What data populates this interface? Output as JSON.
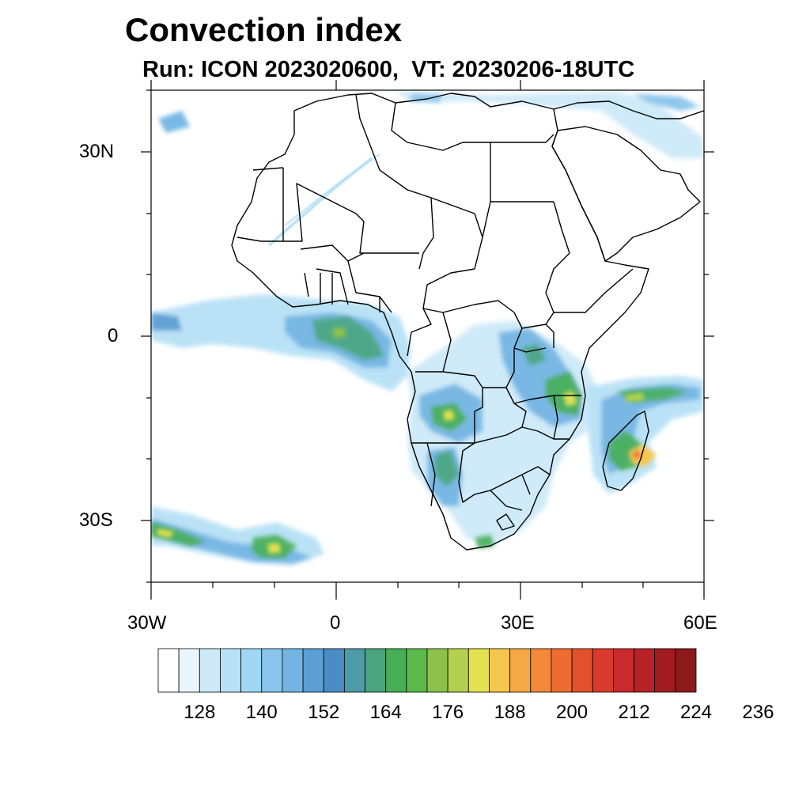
{
  "title": "Convection index",
  "subtitle": "Run: ICON 2023020600,  VT: 20230206-18UTC",
  "map": {
    "lon_range": [
      "30W",
      "60E"
    ],
    "lat_range": [
      "40S",
      "40N"
    ],
    "y_ticks": [
      "30N",
      "0",
      "30S"
    ],
    "x_ticks": [
      "30W",
      "0",
      "30E",
      "60E"
    ]
  },
  "colorbar": {
    "labels": [
      "128",
      "140",
      "152",
      "164",
      "176",
      "188",
      "200",
      "212",
      "224",
      "236"
    ],
    "colors": [
      "#ffffff",
      "#eaf6fd",
      "#cde9f8",
      "#b7e1f6",
      "#9fd8f4",
      "#8ac6ec",
      "#72b5e3",
      "#5a9ed5",
      "#4a8cc6",
      "#4f9aa8",
      "#4aa57f",
      "#46ae55",
      "#5cb84a",
      "#8cc24b",
      "#b5d04c",
      "#e3e150",
      "#f6c74d",
      "#f5a843",
      "#f28a3a",
      "#ee6b31",
      "#e4502c",
      "#d93a2c",
      "#c92a2b",
      "#b82126",
      "#a21b20",
      "#8c1a1a"
    ]
  }
}
